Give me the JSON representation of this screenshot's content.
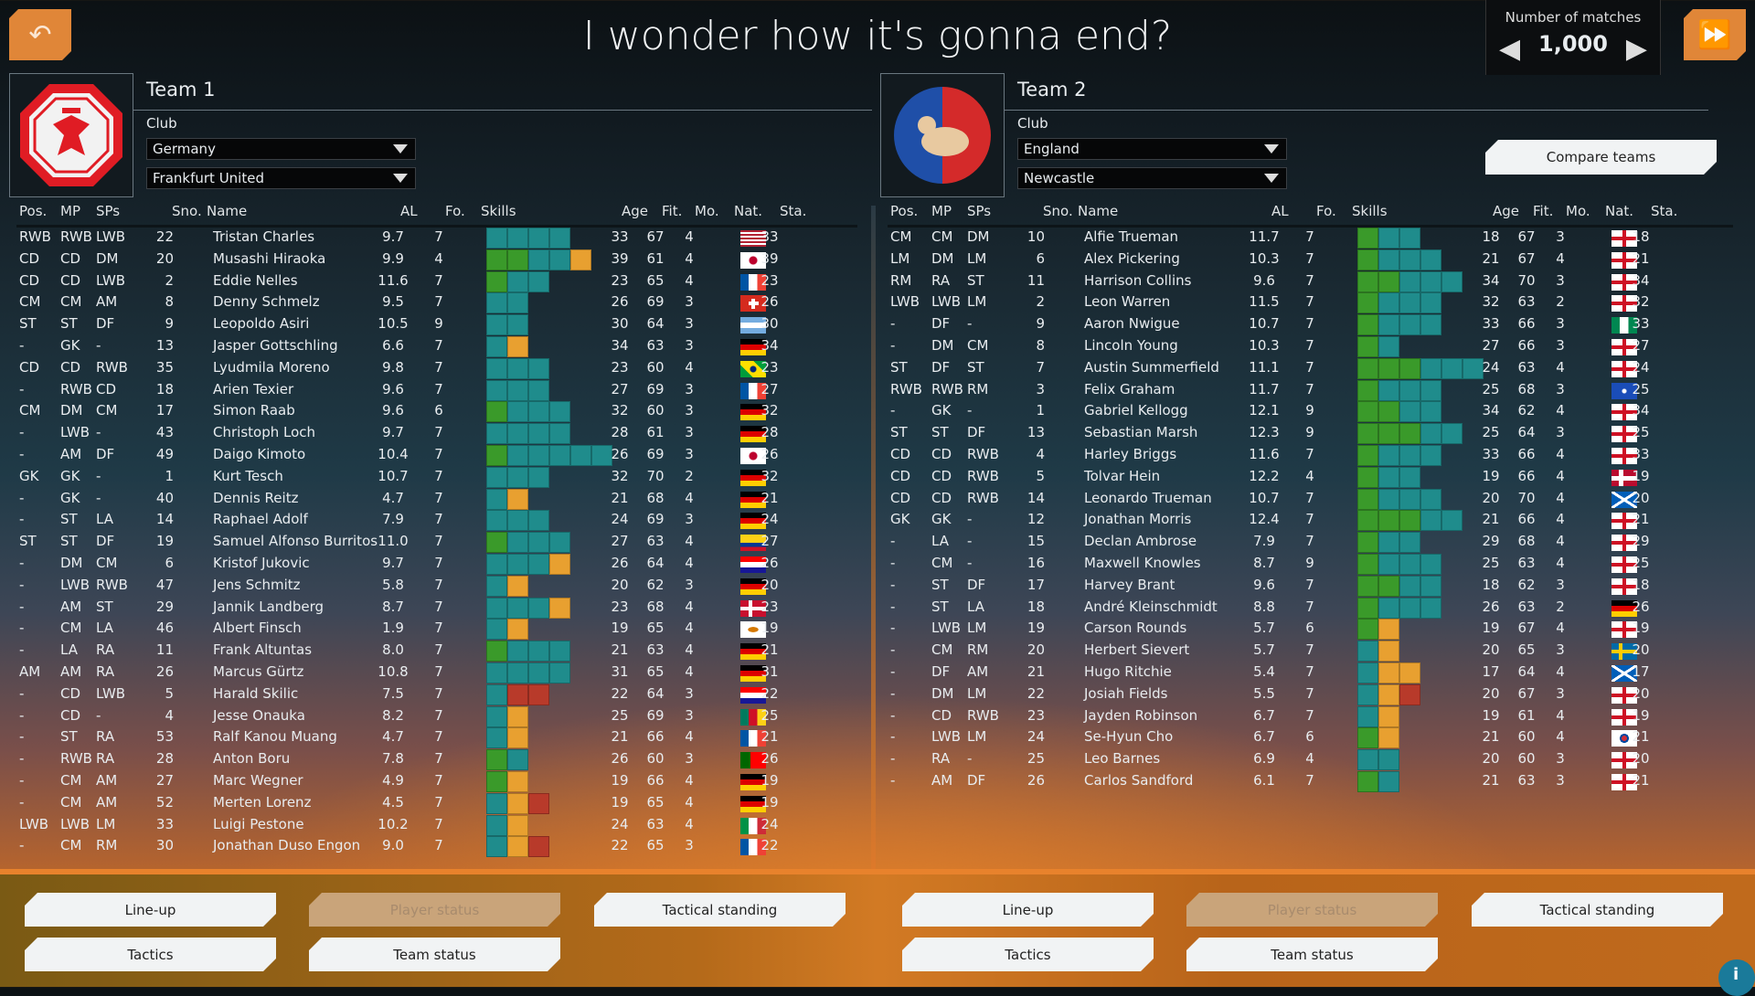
{
  "header": {
    "title": "I wonder how it's gonna end?",
    "back_icon": "undo-arrow-icon",
    "forward_icon": "fast-forward-icon"
  },
  "matches": {
    "label": "Number of matches",
    "value": "1,000"
  },
  "compare_label": "Compare teams",
  "columns": [
    "Pos.",
    "MP",
    "SPs",
    "Sno.",
    "Name",
    "AL",
    "Fo.",
    "Skills",
    "Age",
    "Fit.",
    "Mo.",
    "Nat.",
    "Sta."
  ],
  "skill_colors": {
    "t": "#1f8c8c",
    "g": "#3a9a2a",
    "o": "#e8a030",
    "r": "#b83a2a"
  },
  "teams": [
    {
      "title": "Team 1",
      "club_label": "Club",
      "country": "Germany",
      "club": "Frankfurt United",
      "crest_colors": [
        "#e01c24",
        "#f2f2f2"
      ],
      "buttons": [
        "Line-up",
        "Player status",
        "Tactical standing",
        "Tactics",
        "Team status"
      ],
      "rows": [
        [
          "RWB",
          "RWB",
          "LWB",
          "22",
          "Tristan Charles",
          "9.7",
          "7",
          "tttt",
          "33",
          "67",
          "4",
          "us",
          "33"
        ],
        [
          "CD",
          "CD",
          "DM",
          "20",
          "Musashi Hiraoka",
          "9.9",
          "4",
          "ggtto",
          "39",
          "61",
          "4",
          "jp",
          "39"
        ],
        [
          "CD",
          "CD",
          "LWB",
          "2",
          "Eddie Nelles",
          "11.6",
          "7",
          "gtt",
          "23",
          "65",
          "4",
          "fr",
          "23"
        ],
        [
          "CM",
          "CM",
          "AM",
          "8",
          "Denny Schmelz",
          "9.5",
          "7",
          "tt",
          "26",
          "69",
          "3",
          "ch",
          "26"
        ],
        [
          "ST",
          "ST",
          "DF",
          "9",
          "Leopoldo Asiri",
          "10.5",
          "9",
          "tt",
          "30",
          "64",
          "3",
          "ar",
          "30"
        ],
        [
          "-",
          "GK",
          "-",
          "13",
          "Jasper Gottschling",
          "6.6",
          "7",
          "to",
          "34",
          "63",
          "3",
          "de",
          "34"
        ],
        [
          "CD",
          "CD",
          "RWB",
          "35",
          "Lyudmila Moreno",
          "9.8",
          "7",
          "ttt",
          "23",
          "60",
          "4",
          "br",
          "23"
        ],
        [
          "-",
          "RWB",
          "CD",
          "18",
          "Arien Texier",
          "9.6",
          "7",
          "ttt",
          "27",
          "69",
          "3",
          "fr",
          "27"
        ],
        [
          "CM",
          "DM",
          "CM",
          "17",
          "Simon Raab",
          "9.6",
          "6",
          "gttt",
          "32",
          "60",
          "3",
          "de",
          "32"
        ],
        [
          "-",
          "LWB",
          "-",
          "43",
          "Christoph Loch",
          "9.7",
          "7",
          "tttt",
          "28",
          "61",
          "3",
          "de",
          "28"
        ],
        [
          "-",
          "AM",
          "DF",
          "49",
          "Daigo Kimoto",
          "10.4",
          "7",
          "gttttt",
          "26",
          "69",
          "3",
          "jp",
          "26"
        ],
        [
          "GK",
          "GK",
          "-",
          "1",
          "Kurt Tesch",
          "10.7",
          "7",
          "ttt",
          "32",
          "70",
          "2",
          "de",
          "32"
        ],
        [
          "-",
          "GK",
          "-",
          "40",
          "Dennis Reitz",
          "4.7",
          "7",
          "to",
          "21",
          "68",
          "4",
          "de",
          "21"
        ],
        [
          "-",
          "ST",
          "LA",
          "14",
          "Raphael Adolf",
          "7.9",
          "7",
          "ttt",
          "24",
          "69",
          "3",
          "de",
          "24"
        ],
        [
          "ST",
          "ST",
          "DF",
          "19",
          "Samuel Alfonso Burritos",
          "11.0",
          "7",
          "gttt",
          "27",
          "63",
          "4",
          "co",
          "27"
        ],
        [
          "-",
          "DM",
          "CM",
          "6",
          "Kristof Jukovic",
          "9.7",
          "7",
          "ttto",
          "26",
          "64",
          "4",
          "hr",
          "26"
        ],
        [
          "-",
          "LWB",
          "RWB",
          "47",
          "Jens Schmitz",
          "5.8",
          "7",
          "to",
          "20",
          "62",
          "3",
          "de",
          "20"
        ],
        [
          "-",
          "AM",
          "ST",
          "29",
          "Jannik Landberg",
          "8.7",
          "7",
          "ttto",
          "23",
          "68",
          "4",
          "dk",
          "23"
        ],
        [
          "-",
          "CM",
          "LA",
          "46",
          "Albert Finsch",
          "1.9",
          "7",
          "to",
          "19",
          "65",
          "4",
          "cy",
          "19"
        ],
        [
          "-",
          "LA",
          "RA",
          "11",
          "Frank Altuntas",
          "8.0",
          "7",
          "gttt",
          "21",
          "63",
          "4",
          "de",
          "21"
        ],
        [
          "AM",
          "AM",
          "RA",
          "26",
          "Marcus Gürtz",
          "10.8",
          "7",
          "tttt",
          "31",
          "65",
          "4",
          "de",
          "31"
        ],
        [
          "-",
          "CD",
          "LWB",
          "5",
          "Harald Skilic",
          "7.5",
          "7",
          "trr",
          "22",
          "64",
          "3",
          "hr",
          "22"
        ],
        [
          "-",
          "CD",
          "-",
          "4",
          "Jesse Onauka",
          "8.2",
          "7",
          "to",
          "25",
          "69",
          "3",
          "cm",
          "25"
        ],
        [
          "-",
          "ST",
          "RA",
          "53",
          "Ralf Kanou Muang",
          "4.7",
          "7",
          "to",
          "21",
          "66",
          "4",
          "fr",
          "21"
        ],
        [
          "-",
          "RWB",
          "RA",
          "28",
          "Anton Boru",
          "7.8",
          "7",
          "gt",
          "26",
          "60",
          "3",
          "pt",
          "26"
        ],
        [
          "-",
          "CM",
          "AM",
          "27",
          "Marc Wegner",
          "4.9",
          "7",
          "go",
          "19",
          "66",
          "4",
          "de",
          "19"
        ],
        [
          "-",
          "CM",
          "AM",
          "52",
          "Merten Lorenz",
          "4.5",
          "7",
          "tor",
          "19",
          "65",
          "4",
          "de",
          "19"
        ],
        [
          "LWB",
          "LWB",
          "LM",
          "33",
          "Luigi Pestone",
          "10.2",
          "7",
          "to",
          "24",
          "63",
          "4",
          "it",
          "24"
        ],
        [
          "-",
          "CM",
          "RM",
          "30",
          "Jonathan Duso Engon",
          "9.0",
          "7",
          "tor",
          "22",
          "65",
          "3",
          "fr",
          "22"
        ]
      ]
    },
    {
      "title": "Team 2",
      "club_label": "Club",
      "country": "England",
      "club": "Newcastle",
      "crest_colors": [
        "#1f4fa8",
        "#d42a2a"
      ],
      "buttons": [
        "Line-up",
        "Player status",
        "Tactical standing",
        "Tactics",
        "Team status"
      ],
      "rows": [
        [
          "CM",
          "CM",
          "DM",
          "10",
          "Alfie Trueman",
          "11.7",
          "7",
          "gtt",
          "18",
          "67",
          "3",
          "en",
          "18"
        ],
        [
          "LM",
          "DM",
          "LM",
          "6",
          "Alex Pickering",
          "10.3",
          "7",
          "gttt",
          "21",
          "67",
          "4",
          "en",
          "21"
        ],
        [
          "RM",
          "RA",
          "ST",
          "11",
          "Harrison Collins",
          "9.6",
          "7",
          "ggttt",
          "34",
          "70",
          "3",
          "en",
          "34"
        ],
        [
          "LWB",
          "LWB",
          "LM",
          "2",
          "Leon Warren",
          "11.5",
          "7",
          "gttt",
          "32",
          "63",
          "2",
          "en",
          "32"
        ],
        [
          "-",
          "DF",
          "-",
          "9",
          "Aaron Nwigue",
          "10.7",
          "7",
          "gttt",
          "33",
          "66",
          "3",
          "ng",
          "33"
        ],
        [
          "-",
          "DM",
          "CM",
          "8",
          "Lincoln Young",
          "10.3",
          "7",
          "gt",
          "27",
          "66",
          "3",
          "en",
          "27"
        ],
        [
          "ST",
          "DF",
          "ST",
          "7",
          "Austin Summerfield",
          "11.1",
          "7",
          "gggttt",
          "24",
          "63",
          "4",
          "en",
          "24"
        ],
        [
          "RWB",
          "RWB",
          "RM",
          "3",
          "Felix Graham",
          "11.7",
          "7",
          "gttt",
          "25",
          "68",
          "3",
          "fm",
          "25"
        ],
        [
          "-",
          "GK",
          "-",
          "1",
          "Gabriel Kellogg",
          "12.1",
          "9",
          "ggtt",
          "34",
          "62",
          "4",
          "en",
          "34"
        ],
        [
          "ST",
          "ST",
          "DF",
          "13",
          "Sebastian Marsh",
          "12.3",
          "9",
          "gggtt",
          "25",
          "64",
          "3",
          "en",
          "25"
        ],
        [
          "CD",
          "CD",
          "RWB",
          "4",
          "Harley Briggs",
          "11.6",
          "7",
          "gttt",
          "33",
          "66",
          "4",
          "en",
          "33"
        ],
        [
          "CD",
          "CD",
          "RWB",
          "5",
          "Tolvar Hein",
          "12.2",
          "4",
          "gtt",
          "19",
          "66",
          "4",
          "no",
          "19"
        ],
        [
          "CD",
          "CD",
          "RWB",
          "14",
          "Leonardo Trueman",
          "10.7",
          "7",
          "gttt",
          "20",
          "70",
          "4",
          "sc",
          "20"
        ],
        [
          "GK",
          "GK",
          "-",
          "12",
          "Jonathan Morris",
          "12.4",
          "7",
          "gggtt",
          "21",
          "66",
          "4",
          "en",
          "21"
        ],
        [
          "-",
          "LA",
          "-",
          "15",
          "Declan Ambrose",
          "7.9",
          "7",
          "gtt",
          "29",
          "68",
          "4",
          "en",
          "29"
        ],
        [
          "-",
          "CM",
          "-",
          "16",
          "Maxwell Knowles",
          "8.7",
          "9",
          "gttt",
          "25",
          "63",
          "4",
          "en",
          "25"
        ],
        [
          "-",
          "ST",
          "DF",
          "17",
          "Harvey Brant",
          "9.6",
          "7",
          "ggtt",
          "18",
          "62",
          "3",
          "en",
          "18"
        ],
        [
          "-",
          "ST",
          "LA",
          "18",
          "André Kleinschmidt",
          "8.8",
          "7",
          "gttt",
          "26",
          "63",
          "2",
          "de",
          "26"
        ],
        [
          "-",
          "LWB",
          "LM",
          "19",
          "Carson Rounds",
          "5.7",
          "6",
          "go",
          "19",
          "67",
          "4",
          "en",
          "19"
        ],
        [
          "-",
          "CM",
          "RM",
          "20",
          "Herbert Sievert",
          "5.7",
          "7",
          "to",
          "20",
          "65",
          "3",
          "se",
          "20"
        ],
        [
          "-",
          "DF",
          "AM",
          "21",
          "Hugo Ritchie",
          "5.4",
          "7",
          "too",
          "17",
          "64",
          "4",
          "sc",
          "17"
        ],
        [
          "-",
          "DM",
          "LM",
          "22",
          "Josiah Fields",
          "5.5",
          "7",
          "tor",
          "20",
          "67",
          "3",
          "en",
          "20"
        ],
        [
          "-",
          "CD",
          "RWB",
          "23",
          "Jayden Robinson",
          "6.7",
          "7",
          "to",
          "19",
          "61",
          "4",
          "en",
          "19"
        ],
        [
          "-",
          "LWB",
          "LM",
          "24",
          "Se-Hyun Cho",
          "6.7",
          "6",
          "go",
          "21",
          "60",
          "4",
          "kr",
          "21"
        ],
        [
          "-",
          "RA",
          "-",
          "25",
          "Leo Barnes",
          "6.9",
          "4",
          "tt",
          "20",
          "60",
          "3",
          "en",
          "20"
        ],
        [
          "-",
          "AM",
          "DF",
          "26",
          "Carlos Sandford",
          "6.1",
          "7",
          "gt",
          "21",
          "63",
          "3",
          "en",
          "21"
        ]
      ]
    }
  ]
}
